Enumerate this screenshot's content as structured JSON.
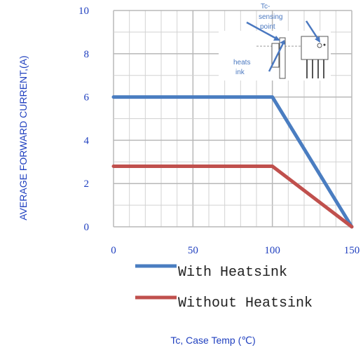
{
  "chart_data": {
    "type": "line",
    "title": "",
    "xlabel": "Tc, Case Temp (℃)",
    "ylabel": "AVERAGE FORWARD CURRENT,(A)",
    "xlim": [
      0,
      150
    ],
    "ylim": [
      0,
      10
    ],
    "x_ticks": [
      "0",
      "50",
      "100",
      "150"
    ],
    "y_ticks": [
      "0",
      "2",
      "4",
      "6",
      "8",
      "10"
    ],
    "grid": true,
    "legend_position": "bottom",
    "series": [
      {
        "name": "With Heatsink",
        "color": "#4a7dc1",
        "x": [
          0,
          100,
          150
        ],
        "y": [
          6.0,
          6.0,
          0.0
        ]
      },
      {
        "name": "Without Heatsink",
        "color": "#c0504d",
        "x": [
          0,
          100,
          150
        ],
        "y": [
          2.8,
          2.8,
          0.0
        ]
      }
    ],
    "annotations": [
      {
        "text": "Tc-sensing point",
        "lines": [
          "Tc-",
          "sensing",
          "point"
        ]
      },
      {
        "text": "heatsink",
        "lines": [
          "heats",
          "ink"
        ]
      }
    ]
  }
}
